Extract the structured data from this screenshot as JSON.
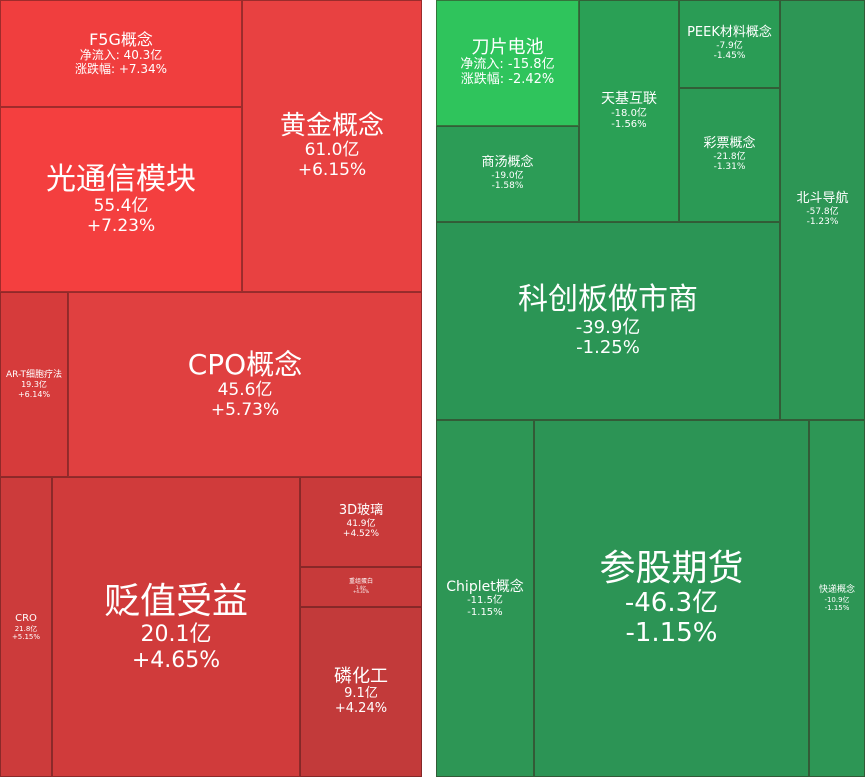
{
  "tiles": [
    {
      "name": "F5G概念",
      "lines": [
        "净流入: 40.3亿",
        "涨跌幅: +7.34%"
      ]
    },
    {
      "name": "黄金概念",
      "lines": [
        "61.0亿",
        "+6.15%"
      ]
    },
    {
      "name": "光通信模块",
      "lines": [
        "55.4亿",
        "+7.23%"
      ]
    },
    {
      "name": "AR-T细胞疗法",
      "lines": [
        "19.3亿",
        "+6.14%"
      ]
    },
    {
      "name": "CPO概念",
      "lines": [
        "45.6亿",
        "+5.73%"
      ]
    },
    {
      "name": "CRO",
      "lines": [
        "21.8亿",
        "+5.15%"
      ]
    },
    {
      "name": "贬值受益",
      "lines": [
        "20.1亿",
        "+4.65%"
      ]
    },
    {
      "name": "3D玻璃",
      "lines": [
        "41.9亿",
        "+4.52%"
      ]
    },
    {
      "name": "重组蛋白",
      "lines": [
        "1.4亿",
        "+4.31%"
      ]
    },
    {
      "name": "磷化工",
      "lines": [
        "9.1亿",
        "+4.24%"
      ]
    },
    {
      "name": "刀片电池",
      "lines": [
        "净流入: -15.8亿",
        "涨跌幅: -2.42%"
      ]
    },
    {
      "name": "天基互联",
      "lines": [
        "-18.0亿",
        "-1.56%"
      ]
    },
    {
      "name": "PEEK材料概念",
      "lines": [
        "-7.9亿",
        "-1.45%"
      ]
    },
    {
      "name": "彩票概念",
      "lines": [
        "-21.8亿",
        "-1.31%"
      ]
    },
    {
      "name": "商汤概念",
      "lines": [
        "-19.0亿",
        "-1.58%"
      ]
    },
    {
      "name": "北斗导航",
      "lines": [
        "-57.8亿",
        "-1.23%"
      ]
    },
    {
      "name": "科创板做市商",
      "lines": [
        "-39.9亿",
        "-1.25%"
      ]
    },
    {
      "name": "Chiplet概念",
      "lines": [
        "-11.5亿",
        "-1.15%"
      ]
    },
    {
      "name": "参股期货",
      "lines": [
        "-46.3亿",
        "-1.15%"
      ]
    },
    {
      "name": "快递概念",
      "lines": [
        "-10.9亿",
        "-1.15%"
      ]
    }
  ]
}
